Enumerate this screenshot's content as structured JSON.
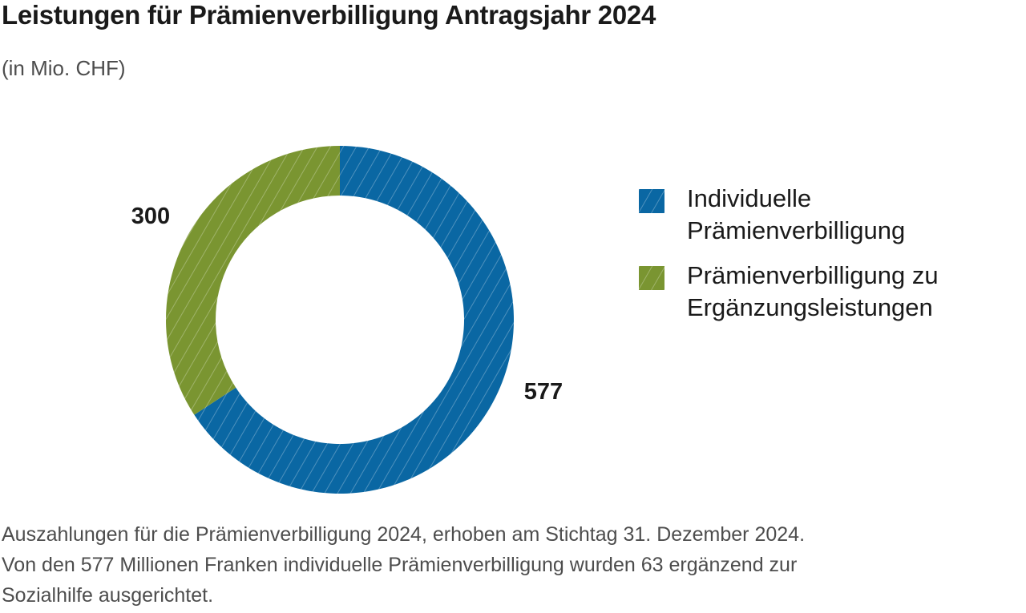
{
  "title": "Leistungen für Prämienverbilligung Antragsjahr 2024",
  "subtitle": "(in Mio. CHF)",
  "chart_data": {
    "type": "pie",
    "style": "donut",
    "hatched": true,
    "title": "Leistungen für Prämienverbilligung Antragsjahr 2024",
    "unit": "(in Mio. CHF)",
    "legend_position": "right",
    "slices": [
      {
        "label": "Individuelle Prämienverbilligung",
        "label_lines": [
          "Individuelle",
          "Prämienverbilligung"
        ],
        "value": 577,
        "value_label": "577",
        "color": "#0a67a3"
      },
      {
        "label": "Prämienverbilligung zu Ergänzungsleistungen",
        "label_lines": [
          "Prämienverbilligung zu",
          "Ergänzungsleistungen"
        ],
        "value": 300,
        "value_label": "300",
        "color": "#7a9531"
      }
    ]
  },
  "footnote": {
    "lines": [
      "Auszahlungen für die Prämienverbilligung 2024, erhoben am Stichtag 31. Dezember 2024.",
      "Von den 577 Millionen Franken individuelle Prämienverbilligung wurden 63 ergänzend zur",
      "Sozialhilfe ausgerichtet."
    ]
  }
}
